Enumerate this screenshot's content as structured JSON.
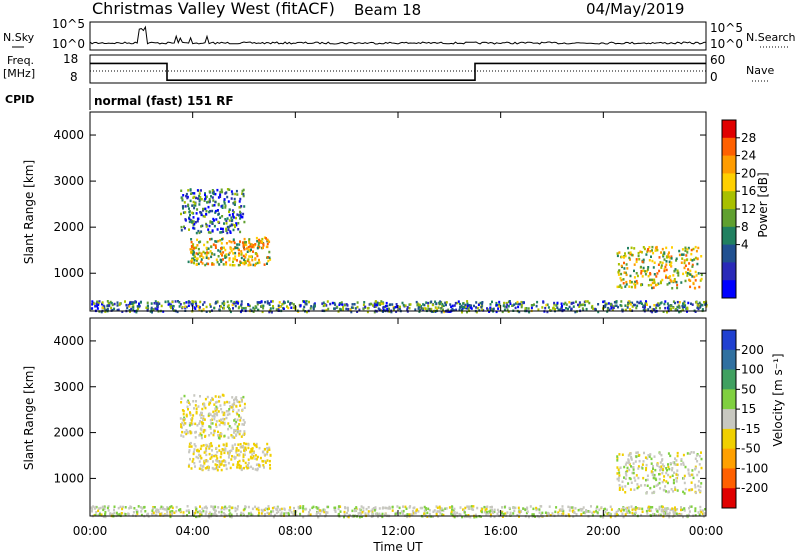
{
  "header": {
    "site": "Christmas Valley West (fitACF)",
    "beam": "Beam 18",
    "date": "04/May/2019"
  },
  "strips": {
    "nsky_label": "N.Sky",
    "nsky_ticks": [
      "10^5",
      "10^0"
    ],
    "nsearch_label": "N.Search",
    "nsearch_ticks": [
      "10^5",
      "10^0"
    ],
    "freq_label": "Freq.",
    "freq_unit": "[MHz]",
    "freq_ticks": [
      "18",
      "8"
    ],
    "nave_label": "Nave",
    "nave_ticks": [
      "60",
      "0"
    ],
    "cpid_label": "CPID",
    "cpid_text": "normal (fast) 151 RF"
  },
  "panels": {
    "power": {
      "ylabel": "Slant Range [km]",
      "ytick_labels": [
        "4000",
        "3000",
        "2000",
        "1000"
      ],
      "cbar_label": "Power [dB]",
      "cbar_labels": [
        "28",
        "24",
        "20",
        "16",
        "12",
        "8",
        "4"
      ],
      "cbar_colors": [
        "#e00000",
        "#ff6000",
        "#ff9c00",
        "#ffd000",
        "#a8c000",
        "#60a030",
        "#208060",
        "#205090",
        "#2a2ab8",
        "#0000ff"
      ]
    },
    "velocity": {
      "ylabel": "Slant Range [km]",
      "ytick_labels": [
        "4000",
        "3000",
        "2000",
        "1000"
      ],
      "cbar_label": "Velocity [m s⁻¹]",
      "cbar_labels": [
        "200",
        "100",
        "50",
        "15",
        "-15",
        "-50",
        "-100",
        "-200"
      ],
      "cbar_colors": [
        "#2040d0",
        "#3070a0",
        "#40a060",
        "#80d040",
        "#c8c8c0",
        "#f0d000",
        "#ffa000",
        "#ff6000",
        "#e00000"
      ]
    }
  },
  "xaxis": {
    "tick_labels": [
      "00:00",
      "04:00",
      "08:00",
      "12:00",
      "16:00",
      "20:00",
      "00:00"
    ],
    "label": "Time UT"
  },
  "chart_data": {
    "type": "heatmap",
    "title": "Christmas Valley West (fitACF)",
    "subtitle": "Beam 18",
    "date": "04/May/2019",
    "x_unit": "hours UT",
    "xlim": [
      0,
      24
    ],
    "ylim": [
      180,
      4500
    ],
    "yticks": [
      1000,
      2000,
      3000,
      4000
    ],
    "power_scale": [
      0,
      30
    ],
    "velocity_scale": [
      -240,
      240
    ],
    "frequency_mhz": [
      {
        "t0": 0,
        "t1": 3,
        "f": 15
      },
      {
        "t0": 3,
        "t1": 15,
        "f": 9
      },
      {
        "t0": 15,
        "t1": 24,
        "f": 15
      }
    ],
    "echo_regions": [
      {
        "name": "A",
        "t0": 3.8,
        "t1": 7.0,
        "r0": 1200,
        "r1": 1800,
        "power": 18,
        "velocity": -30
      },
      {
        "name": "B",
        "t0": 3.5,
        "t1": 6.0,
        "r0": 1900,
        "r1": 2850,
        "power": 8,
        "velocity": -10
      },
      {
        "name": "C",
        "t0": 20.5,
        "t1": 23.8,
        "r0": 700,
        "r1": 1600,
        "power": 18,
        "velocity": 0
      },
      {
        "name": "D",
        "t0": 0,
        "t1": 24,
        "r0": 180,
        "r1": 420,
        "power": 10,
        "velocity": 5
      }
    ]
  }
}
